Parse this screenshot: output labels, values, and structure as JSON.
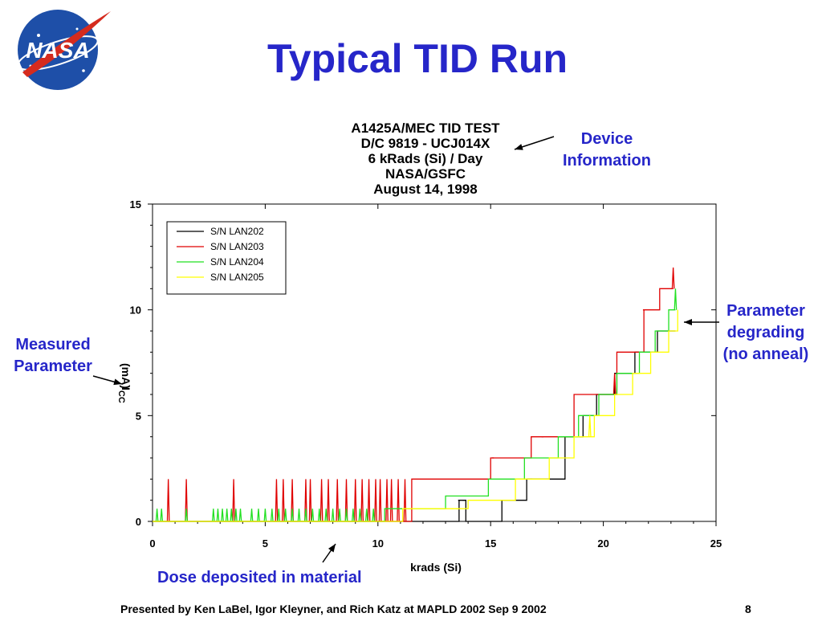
{
  "slide": {
    "title": "Typical TID Run",
    "footer": "Presented by Ken LaBel, Igor Kleyner, and Rich Katz at MAPLD 2002 Sep 9 2002",
    "page_number": "8",
    "logo_text": "NASA"
  },
  "callouts": {
    "device_info": [
      "Device",
      "Information"
    ],
    "measured_parameter": [
      "Measured",
      "Parameter"
    ],
    "parameter_degrading": [
      "Parameter",
      "degrading",
      "(no anneal)"
    ],
    "dose_deposited": "Dose deposited in material"
  },
  "colors": {
    "title": "#2626c9",
    "callout": "#2626c9",
    "lan202": "#000000",
    "lan203": "#e00000",
    "lan204": "#22e022",
    "lan205": "#ffff00"
  },
  "chart_data": {
    "type": "line",
    "title_lines": [
      "A1425A/MEC TID TEST",
      "D/C 9819 - UCJ014X",
      "6 kRads (Si) / Day",
      "NASA/GSFC",
      "August 14, 1998"
    ],
    "xlabel": "krads (Si)",
    "ylabel": "I",
    "ylabel_sub": "CC",
    "ylabel_unit": "(mA)",
    "xlim": [
      0,
      25
    ],
    "ylim": [
      0,
      15
    ],
    "xticks": [
      0,
      5,
      10,
      15,
      20,
      25
    ],
    "yticks": [
      0,
      5,
      10,
      15
    ],
    "grid": false,
    "legend_position": "top-left",
    "series": [
      {
        "name": "S/N LAN202",
        "color_key": "lan202",
        "steps": [
          [
            0,
            0
          ],
          [
            11.5,
            0
          ],
          [
            13.6,
            1
          ],
          [
            13.9,
            0
          ],
          [
            14.1,
            0
          ],
          [
            15.5,
            1
          ],
          [
            16.5,
            1
          ],
          [
            16.6,
            2
          ],
          [
            18.2,
            2
          ],
          [
            18.3,
            4
          ],
          [
            19.0,
            4
          ],
          [
            19.1,
            5
          ],
          [
            19.6,
            5
          ],
          [
            19.7,
            6
          ],
          [
            20.4,
            6
          ],
          [
            20.5,
            7
          ],
          [
            21.3,
            7
          ],
          [
            21.4,
            8
          ],
          [
            22.3,
            8
          ],
          [
            22.4,
            9
          ],
          [
            23.2,
            9
          ]
        ],
        "spikes": [
          [
            13.6,
            1
          ],
          [
            13.8,
            1
          ],
          [
            16.8,
            2
          ]
        ]
      },
      {
        "name": "S/N LAN203",
        "color_key": "lan203",
        "steps": [
          [
            0,
            0
          ],
          [
            11.4,
            0
          ],
          [
            11.5,
            2
          ],
          [
            14.9,
            2
          ],
          [
            15.0,
            3
          ],
          [
            16.7,
            3
          ],
          [
            16.8,
            4
          ],
          [
            18.6,
            4
          ],
          [
            18.7,
            6
          ],
          [
            20.5,
            6
          ],
          [
            20.6,
            8
          ],
          [
            21.7,
            8
          ],
          [
            21.8,
            10
          ],
          [
            22.4,
            10
          ],
          [
            22.5,
            11
          ],
          [
            23.1,
            11
          ]
        ],
        "spikes": [
          [
            0.7,
            2
          ],
          [
            1.5,
            2
          ],
          [
            3.6,
            2
          ],
          [
            5.5,
            2
          ],
          [
            5.8,
            2
          ],
          [
            6.2,
            2
          ],
          [
            6.8,
            2
          ],
          [
            7.0,
            2
          ],
          [
            7.5,
            2
          ],
          [
            7.8,
            2
          ],
          [
            8.2,
            2
          ],
          [
            8.6,
            2
          ],
          [
            9.0,
            2
          ],
          [
            9.3,
            2
          ],
          [
            9.6,
            2
          ],
          [
            9.9,
            2
          ],
          [
            10.1,
            2
          ],
          [
            10.4,
            2
          ],
          [
            10.6,
            2
          ],
          [
            10.9,
            2
          ],
          [
            11.2,
            2
          ],
          [
            15.1,
            3
          ],
          [
            17.3,
            4
          ],
          [
            20.5,
            7
          ],
          [
            21.8,
            10
          ],
          [
            23.1,
            12
          ]
        ]
      },
      {
        "name": "S/N LAN204",
        "color_key": "lan204",
        "steps": [
          [
            0,
            0
          ],
          [
            10.2,
            0
          ],
          [
            10.3,
            0.6
          ],
          [
            12.9,
            0.6
          ],
          [
            13.0,
            1.2
          ],
          [
            14.8,
            1.2
          ],
          [
            14.9,
            2
          ],
          [
            16.4,
            2
          ],
          [
            16.5,
            3
          ],
          [
            17.9,
            3
          ],
          [
            18.0,
            4
          ],
          [
            18.8,
            4
          ],
          [
            18.9,
            5
          ],
          [
            19.7,
            5
          ],
          [
            19.8,
            6
          ],
          [
            20.5,
            6
          ],
          [
            20.6,
            7
          ],
          [
            21.5,
            7
          ],
          [
            21.6,
            8
          ],
          [
            22.2,
            8
          ],
          [
            22.3,
            9
          ],
          [
            22.8,
            9
          ],
          [
            22.9,
            10
          ],
          [
            23.2,
            10
          ]
        ],
        "spikes": [
          [
            0.2,
            0.6
          ],
          [
            0.4,
            0.6
          ],
          [
            1.5,
            0.6
          ],
          [
            2.7,
            0.6
          ],
          [
            2.9,
            0.6
          ],
          [
            3.1,
            0.6
          ],
          [
            3.3,
            0.6
          ],
          [
            3.5,
            0.6
          ],
          [
            3.7,
            0.6
          ],
          [
            3.9,
            0.6
          ],
          [
            4.4,
            0.6
          ],
          [
            4.7,
            0.6
          ],
          [
            5.0,
            0.6
          ],
          [
            5.3,
            0.6
          ],
          [
            5.6,
            0.6
          ],
          [
            5.9,
            0.6
          ],
          [
            6.2,
            0.6
          ],
          [
            6.5,
            0.6
          ],
          [
            6.8,
            0.6
          ],
          [
            7.1,
            0.6
          ],
          [
            7.4,
            0.6
          ],
          [
            7.7,
            0.6
          ],
          [
            8.0,
            0.6
          ],
          [
            8.3,
            0.6
          ],
          [
            8.6,
            0.6
          ],
          [
            8.9,
            0.6
          ],
          [
            9.2,
            0.6
          ],
          [
            9.5,
            0.6
          ],
          [
            9.8,
            0.6
          ],
          [
            23.2,
            11
          ]
        ]
      },
      {
        "name": "S/N LAN205",
        "color_key": "lan205",
        "steps": [
          [
            0,
            0
          ],
          [
            11.0,
            0
          ],
          [
            11.1,
            0.6
          ],
          [
            13.9,
            0.6
          ],
          [
            14.0,
            1
          ],
          [
            16.0,
            1
          ],
          [
            16.1,
            2
          ],
          [
            17.5,
            2
          ],
          [
            17.6,
            3
          ],
          [
            18.6,
            3
          ],
          [
            18.7,
            4
          ],
          [
            19.5,
            4
          ],
          [
            19.6,
            5
          ],
          [
            20.4,
            5
          ],
          [
            20.5,
            6
          ],
          [
            21.2,
            6
          ],
          [
            21.3,
            7
          ],
          [
            22.0,
            7
          ],
          [
            22.1,
            8
          ],
          [
            22.8,
            8
          ],
          [
            22.9,
            9
          ],
          [
            23.2,
            9
          ],
          [
            23.3,
            10
          ]
        ],
        "spikes": [
          [
            13.3,
            0.6
          ],
          [
            13.5,
            0.6
          ],
          [
            19.4,
            5
          ]
        ]
      }
    ]
  }
}
